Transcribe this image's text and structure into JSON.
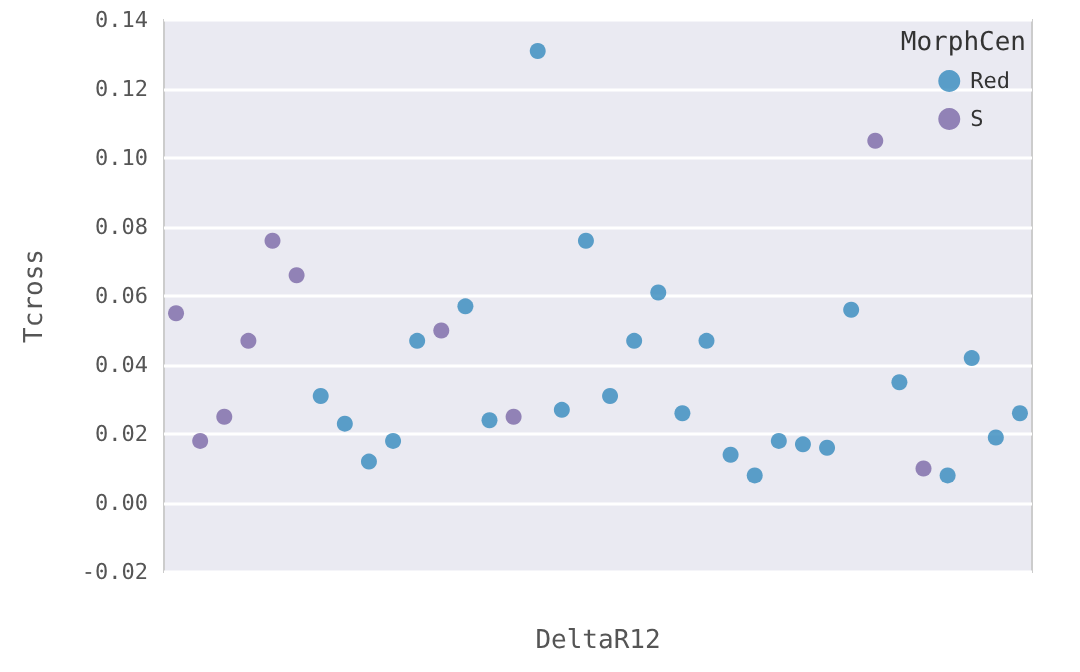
{
  "chart_data": {
    "type": "scatter",
    "xlabel": "DeltaR12",
    "ylabel": "Tcross",
    "legend_title": "MorphCen",
    "categories": [
      null,
      null,
      null,
      null,
      null,
      null,
      null,
      null,
      null,
      null,
      null,
      null,
      null,
      null,
      null,
      null,
      null,
      null,
      null,
      null,
      null,
      null,
      null,
      null,
      null,
      null,
      null,
      null,
      null,
      null,
      null,
      null,
      null,
      null,
      null,
      null
    ],
    "series": [
      {
        "name": "Red",
        "color": "#348abd",
        "values": [
          null,
          null,
          null,
          null,
          null,
          null,
          0.031,
          0.023,
          0.012,
          0.018,
          0.047,
          null,
          0.057,
          0.024,
          null,
          0.131,
          0.027,
          0.076,
          0.031,
          0.047,
          0.061,
          0.026,
          0.047,
          0.014,
          0.008,
          0.018,
          0.017,
          0.016,
          0.056,
          null,
          0.035,
          null,
          0.008,
          0.042,
          0.019,
          0.026
        ]
      },
      {
        "name": "S",
        "color": "#7a68a6",
        "values": [
          0.055,
          0.018,
          0.025,
          0.047,
          0.076,
          0.066,
          null,
          null,
          null,
          null,
          null,
          0.05,
          null,
          null,
          0.025,
          null,
          null,
          null,
          null,
          null,
          null,
          null,
          null,
          null,
          null,
          null,
          null,
          null,
          null,
          0.105,
          null,
          0.01,
          null,
          null,
          null,
          null
        ]
      }
    ],
    "ylim": [
      -0.02,
      0.14
    ],
    "yticks": [
      {
        "value": -0.02,
        "label": "-0.02"
      },
      {
        "value": 0,
        "label": "0.00"
      },
      {
        "value": 0.02,
        "label": "0.02"
      },
      {
        "value": 0.04,
        "label": "0.04"
      },
      {
        "value": 0.06,
        "label": "0.06"
      },
      {
        "value": 0.08,
        "label": "0.08"
      },
      {
        "value": 0.1,
        "label": "0.10"
      },
      {
        "value": 0.12,
        "label": "0.12"
      },
      {
        "value": 0.14,
        "label": "0.14"
      }
    ],
    "grid": "y",
    "legend": "top right",
    "marker": "circle"
  }
}
